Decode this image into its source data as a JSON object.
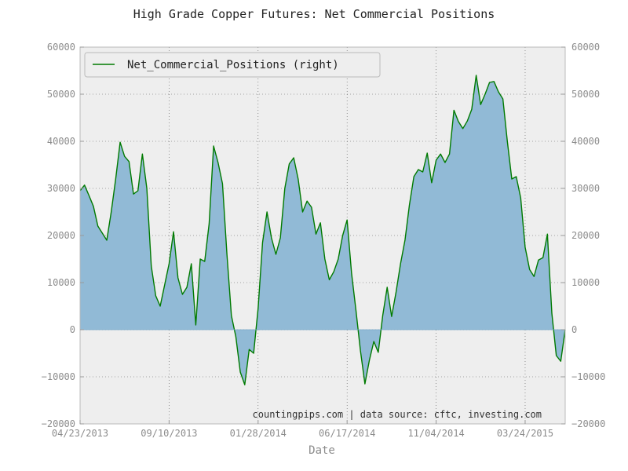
{
  "chart_data": {
    "type": "area",
    "title": "High Grade Copper Futures: Net Commercial Positions",
    "xlabel": "Date",
    "ylabel": "",
    "ylim": [
      -20000,
      60000
    ],
    "y_ticks": [
      -20000,
      -10000,
      0,
      10000,
      20000,
      30000,
      40000,
      50000,
      60000
    ],
    "y_tick_labels": [
      "−20000",
      "−10000",
      "0",
      "10000",
      "20000",
      "30000",
      "40000",
      "50000",
      "60000"
    ],
    "x_tick_labels": [
      "04/23/2013",
      "09/10/2013",
      "01/28/2014",
      "06/17/2014",
      "11/04/2014",
      "03/24/2015"
    ],
    "x_tick_weeks": [
      0,
      20,
      40,
      60,
      80,
      100
    ],
    "grid": true,
    "legend_position": "top-left",
    "annotation": "countingpips.com | data source: cftc, investing.com",
    "colors": {
      "line": "#007a00",
      "fill": "#91bad6",
      "plot_bg": "#eeeeee",
      "grid": "#555555"
    },
    "series": [
      {
        "name": "Net_Commercial_Positions (right)",
        "values": [
          29500,
          30700,
          28500,
          26200,
          22000,
          20500,
          19000,
          25000,
          32000,
          39800,
          36800,
          35700,
          28800,
          29500,
          37300,
          30000,
          13500,
          7200,
          5000,
          9500,
          14000,
          20800,
          11000,
          7500,
          9000,
          14000,
          1000,
          15000,
          14500,
          22500,
          39000,
          35500,
          31000,
          16000,
          3000,
          -1500,
          -9000,
          -11700,
          -4200,
          -5000,
          4500,
          18500,
          25000,
          19500,
          16000,
          19500,
          30000,
          35200,
          36500,
          32000,
          25000,
          27300,
          26000,
          20300,
          22700,
          15000,
          10600,
          12300,
          15000,
          20000,
          23300,
          12000,
          4000,
          -4500,
          -11500,
          -6500,
          -2500,
          -4800,
          3000,
          9000,
          2800,
          8000,
          14000,
          19000,
          26500,
          32500,
          34000,
          33500,
          37500,
          31200,
          36000,
          37300,
          35500,
          37300,
          46600,
          44200,
          42700,
          44300,
          46800,
          54000,
          47800,
          50000,
          52500,
          52700,
          50500,
          49000,
          40000,
          32000,
          32500,
          28000,
          17500,
          12800,
          11300,
          14800,
          15300,
          20300,
          3500,
          -5500,
          -6700,
          0
        ]
      }
    ]
  }
}
